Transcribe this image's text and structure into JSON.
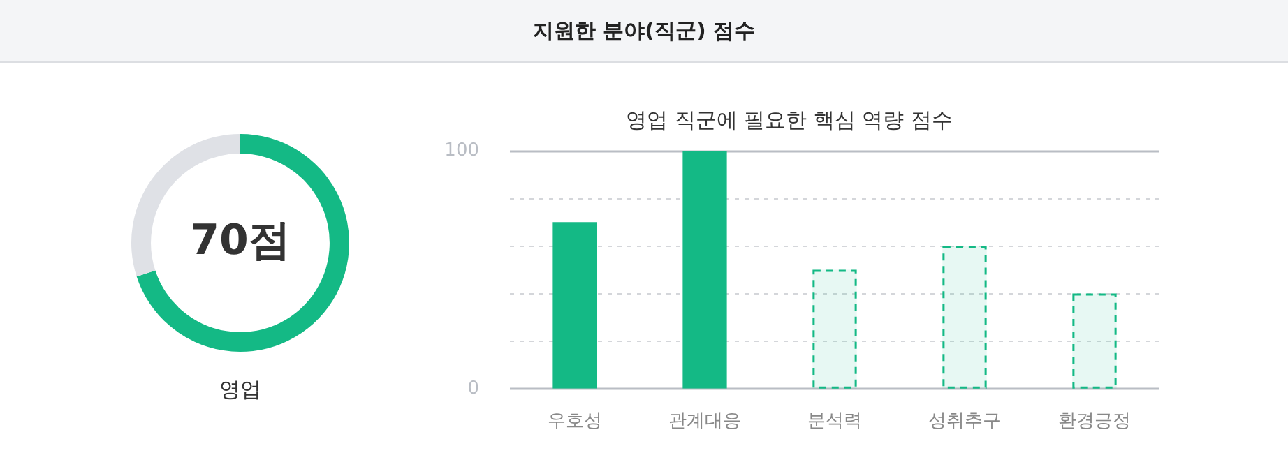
{
  "chart_data": [
    {
      "type": "other",
      "title": "지원한 분야(직군) 점수"
    },
    {
      "type": "donut",
      "xlabel": "영업",
      "categories": [
        null,
        null
      ],
      "values": [
        70,
        30
      ],
      "colors": [
        "#14b985",
        "#dfe1e6"
      ],
      "annotations": [
        "70점"
      ],
      "legend": false
    },
    {
      "type": "bar",
      "title": "영업 직군에 필요한 핵심 역량 점수",
      "categories": [
        "우호성",
        "관계대응",
        "분석력",
        "성취추구",
        "환경긍정"
      ],
      "series": [
        {
          "color": "#14b985",
          "values": [
            70,
            100,
            null,
            null,
            null
          ]
        },
        {
          "color": "#14b985",
          "line_style": "dashed",
          "values": [
            null,
            null,
            50,
            60,
            40
          ]
        }
      ],
      "ylim": [
        0,
        100
      ],
      "yticks": [
        0,
        {
          "value": 20,
          "label": null
        },
        {
          "value": 40,
          "label": null
        },
        {
          "value": 60,
          "label": null
        },
        {
          "value": 80,
          "label": null
        },
        100
      ],
      "grid": "y",
      "legend": false
    }
  ]
}
